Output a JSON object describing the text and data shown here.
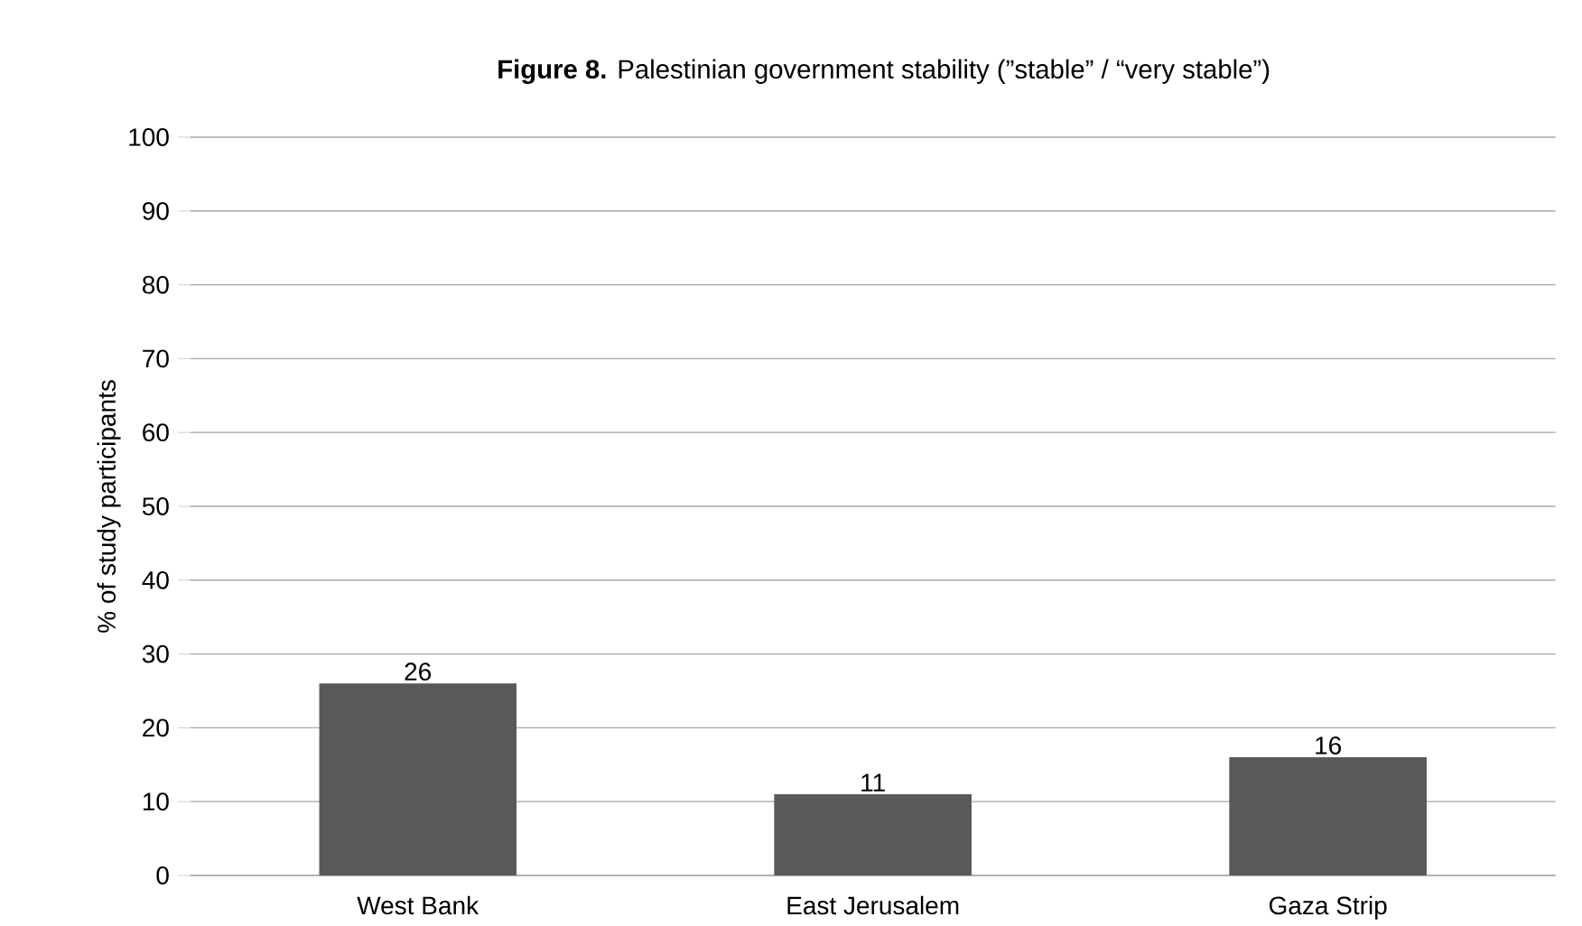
{
  "chart_data": {
    "type": "bar",
    "title": "**Figure 8.** Palestinian government stability (”stable” / “very stable”)",
    "ylabel": "% of study participants",
    "categories": [
      "West Bank",
      "East Jerusalem",
      "Gaza Strip"
    ],
    "values": [
      26,
      11,
      16
    ],
    "color": "#595959",
    "ylim": [
      0,
      100
    ],
    "yticks": [
      0,
      10,
      20,
      30,
      40,
      50,
      60,
      70,
      80,
      90,
      100
    ],
    "grid": "y",
    "data_labels": true
  }
}
